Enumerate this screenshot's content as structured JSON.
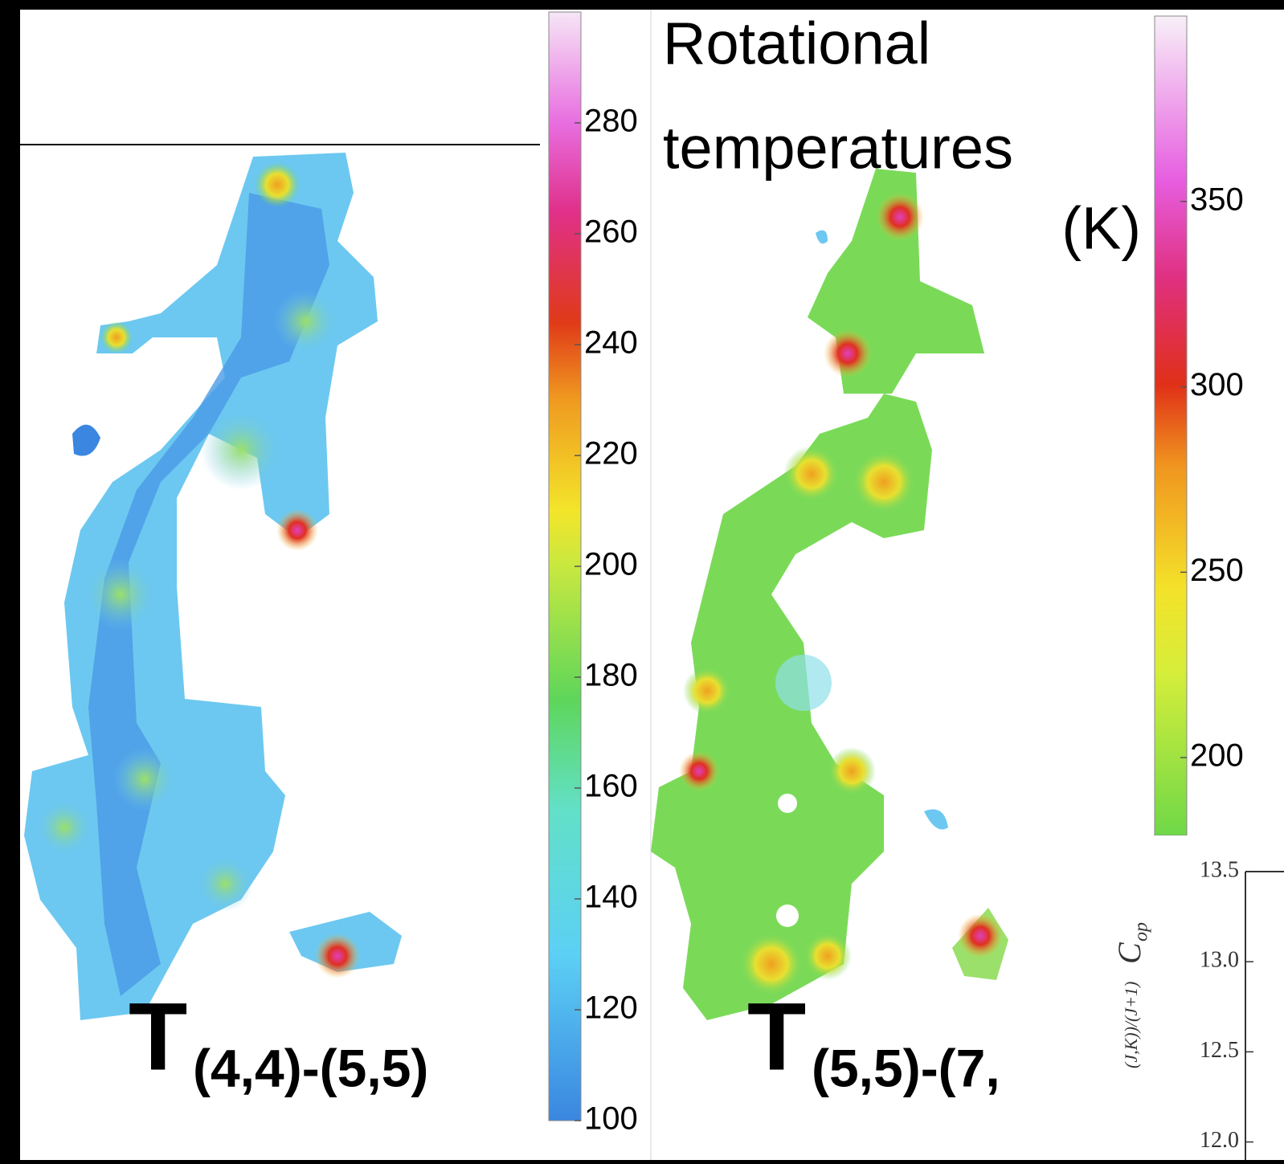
{
  "title_lines": [
    "Rotational",
    "temperatures",
    "(K)"
  ],
  "panels": [
    {
      "symbol": "T",
      "subscript": "(4,4)-(5,5)"
    },
    {
      "symbol": "T",
      "subscript": "(5,5)-(7,"
    }
  ],
  "colorbars": [
    {
      "range": [
        100,
        300
      ],
      "ticks": [
        100,
        120,
        140,
        160,
        180,
        200,
        220,
        240,
        260,
        280
      ]
    },
    {
      "range": [
        179,
        400
      ],
      "ticks": [
        200,
        250,
        300,
        350
      ]
    }
  ],
  "inset": {
    "y_label": "C",
    "y_label_sub": "op",
    "y_label_fraction": "(J,K))/(J+1)",
    "range": [
      11.9,
      13.5
    ],
    "yticks": [
      {
        "value": 12,
        "label": "12.0"
      },
      {
        "value": 12.5,
        "label": "12.5"
      },
      {
        "value": 13,
        "label": "13.0"
      },
      {
        "value": 13.5,
        "label": "13.5"
      }
    ]
  }
}
